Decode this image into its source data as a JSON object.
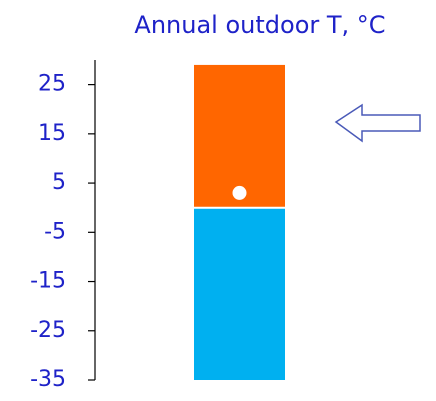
{
  "chart_data": {
    "type": "range_bar",
    "title": "Annual outdoor T, °C",
    "segments": [
      {
        "color": "#00b0f0",
        "low": -35,
        "high": 0
      },
      {
        "color": "#ff6600",
        "low": 0,
        "high": 29
      }
    ],
    "marker": {
      "value": 3,
      "color": "#ffffff"
    },
    "ylim": [
      -35,
      30
    ],
    "yticks": [
      25,
      15,
      5,
      -5,
      -15,
      -25,
      -35
    ]
  }
}
